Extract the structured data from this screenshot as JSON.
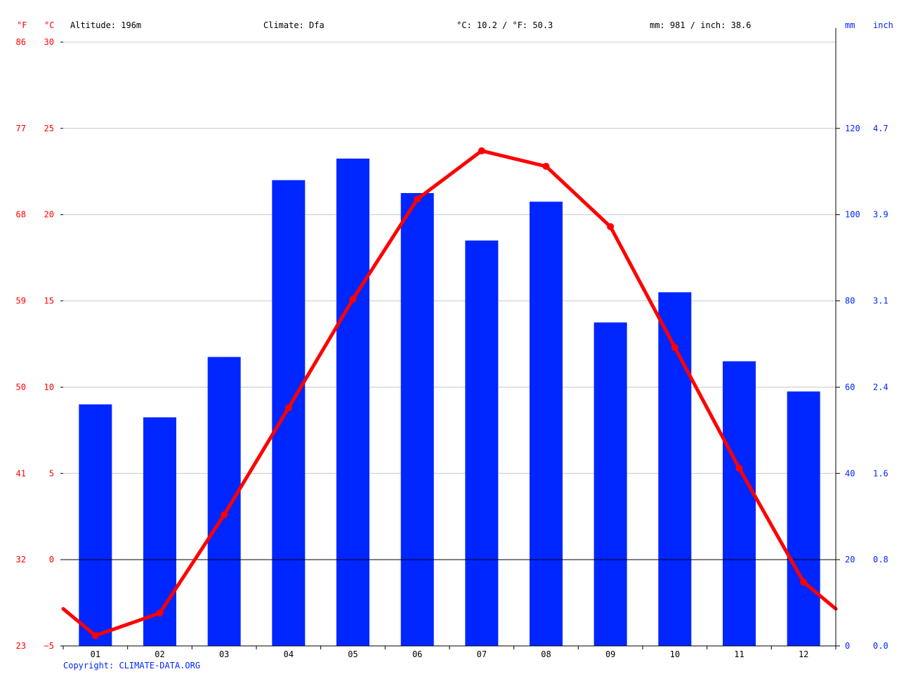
{
  "header": {
    "altitude": "Altitude: 196m",
    "climate": "Climate: Dfa",
    "avg_temp": "°C: 10.2 / °F: 50.3",
    "precip_total": "mm: 981 / inch: 38.6"
  },
  "axes": {
    "left_f_unit": "°F",
    "left_c_unit": "°C",
    "right_mm_unit": "mm",
    "right_inch_unit": "inch",
    "celsius_ticks": [
      "30",
      "25",
      "20",
      "15",
      "10",
      "5",
      "0",
      "−5"
    ],
    "fahrenheit_ticks": [
      "86",
      "77",
      "68",
      "59",
      "50",
      "41",
      "32",
      "23"
    ],
    "mm_ticks": [
      "120",
      "100",
      "80",
      "60",
      "40",
      "20",
      "0"
    ],
    "inch_ticks": [
      "4.7",
      "3.9",
      "3.1",
      "2.4",
      "1.6",
      "0.8",
      "0.0"
    ]
  },
  "copyright": "Copyright: CLIMATE-DATA.ORG",
  "colors": {
    "temperature": "#ff0000",
    "precipitation": "#0026ff",
    "left_axis_text": "#ff0000",
    "right_axis_text": "#0026ff",
    "gridline": "#c8c8c8",
    "zero_line": "#000000"
  },
  "chart_data": {
    "type": "bar",
    "categories": [
      "01",
      "02",
      "03",
      "04",
      "05",
      "06",
      "07",
      "08",
      "09",
      "10",
      "11",
      "12"
    ],
    "temp_ylim": [
      -5,
      30
    ],
    "precip_ylim": [
      0,
      140
    ],
    "grid": true,
    "series": [
      {
        "type": "bar",
        "axis": "right",
        "values": [
          56,
          53,
          67,
          108,
          113,
          105,
          94,
          103,
          75,
          82,
          66,
          59
        ]
      },
      {
        "type": "line",
        "axis": "left",
        "values": [
          -4.4,
          -3.1,
          2.6,
          8.8,
          15.1,
          20.9,
          23.7,
          22.8,
          19.3,
          12.3,
          5.3,
          -1.3
        ]
      }
    ]
  }
}
